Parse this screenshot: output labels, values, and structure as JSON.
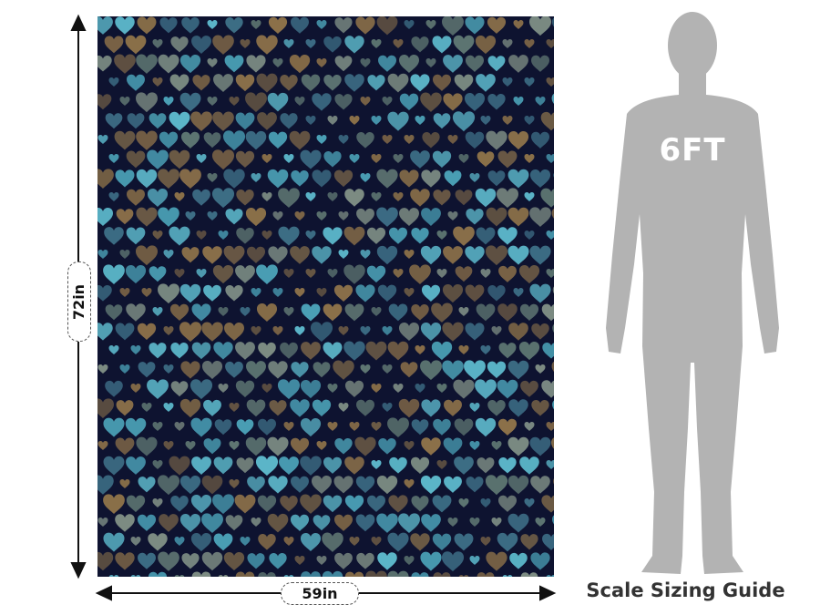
{
  "product": {
    "pattern_name": "hearts",
    "background_color": "#0e1330",
    "heart_colors": [
      "#5cb7ca",
      "#8b7049",
      "#5e7672",
      "#3d6e86",
      "#6b5a45",
      "#4a9fb5",
      "#7d8d84"
    ]
  },
  "dimensions": {
    "height_label": "72in",
    "width_label": "59in"
  },
  "scale_figure": {
    "height_label": "6FT",
    "figure_color": "#b3b3b3",
    "caption": "Scale Sizing Guide"
  }
}
